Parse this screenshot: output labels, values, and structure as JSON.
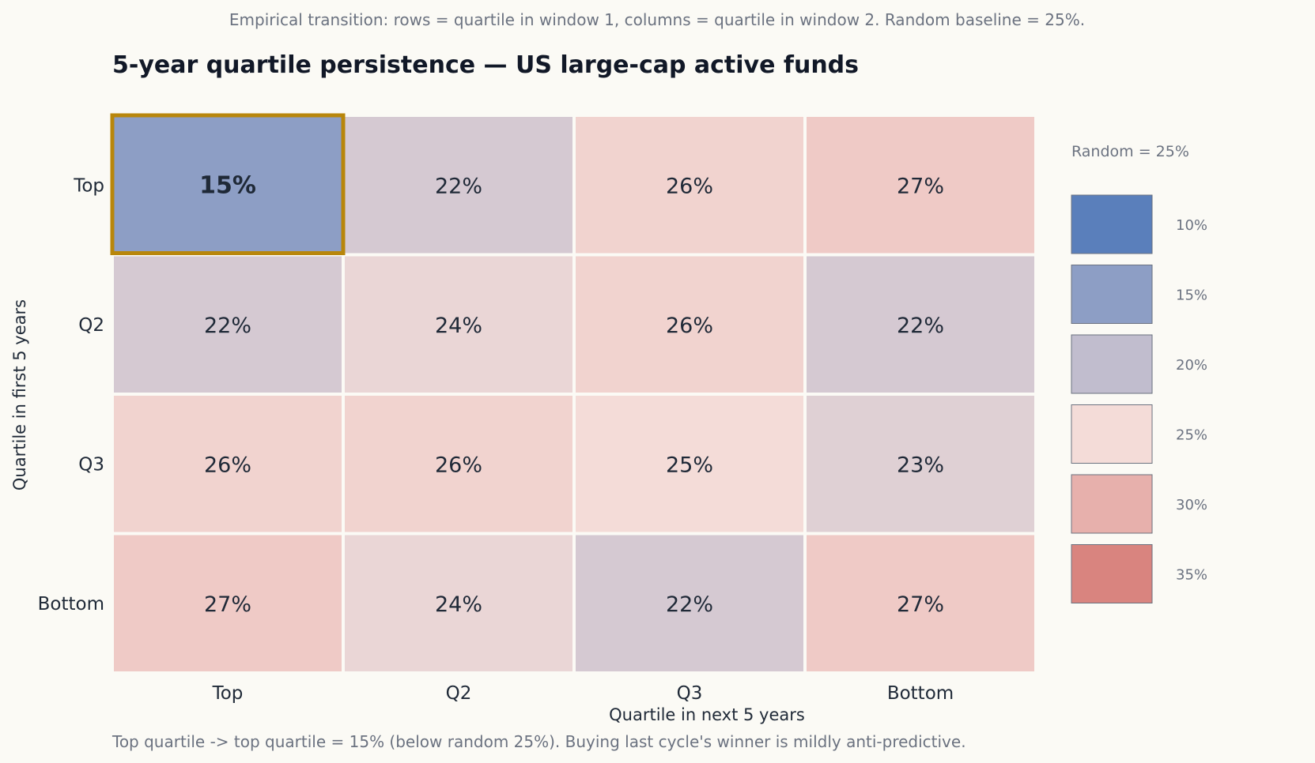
{
  "subtitle": "Empirical transition: rows = quartile in window 1, columns = quartile in window 2. Random baseline = 25%.",
  "footnote": "Top quartile -> top quartile = 15% (below random 25%). Buying last cycle's winner is mildly anti-predictive.",
  "chart_data": {
    "type": "heatmap",
    "title": "5-year quartile persistence — US large-cap active funds",
    "xlabel": "Quartile in next 5 years",
    "ylabel": "Quartile in first 5 years",
    "rows": [
      "Top",
      "Q2",
      "Q3",
      "Bottom"
    ],
    "columns": [
      "Top",
      "Q2",
      "Q3",
      "Bottom"
    ],
    "values": [
      [
        15,
        22,
        26,
        27
      ],
      [
        22,
        24,
        26,
        22
      ],
      [
        26,
        26,
        25,
        23
      ],
      [
        27,
        24,
        22,
        27
      ]
    ],
    "value_suffix": "%",
    "highlight_cell": [
      0,
      0
    ],
    "highlight_color": "#b8860b",
    "color_scale": {
      "min": 10,
      "center": 25,
      "max": 35,
      "low_color": "#5a7fbb",
      "mid_color": "#f4dcd8",
      "high_color": "#d9847f"
    },
    "legend": {
      "title": "Random = 25%",
      "placement": "right",
      "entries": [
        {
          "label": "10%",
          "value": 10
        },
        {
          "label": "15%",
          "value": 15
        },
        {
          "label": "20%",
          "value": 20
        },
        {
          "label": "25%",
          "value": 25
        },
        {
          "label": "30%",
          "value": 30
        },
        {
          "label": "35%",
          "value": 35
        }
      ]
    }
  }
}
